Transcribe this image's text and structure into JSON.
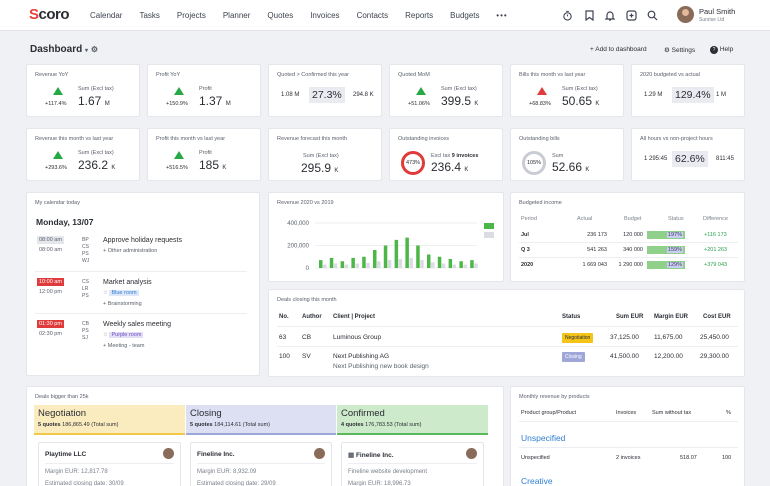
{
  "brand": {
    "logo_prefix": "S",
    "logo_rest": "coro"
  },
  "nav": [
    "Calendar",
    "Tasks",
    "Projects",
    "Planner",
    "Quotes",
    "Invoices",
    "Contacts",
    "Reports",
    "Budgets"
  ],
  "nav_more": "•••",
  "user": {
    "name": "Paul Smith",
    "company": "Sunrise Ltd"
  },
  "header": {
    "title": "Dashboard",
    "add": "+ Add to dashboard",
    "settings": "Settings",
    "help": "Help"
  },
  "kpis_row1": [
    {
      "title": "Revenue YoY",
      "type": "trend",
      "dir": "up",
      "pct": "+117.4%",
      "label": "Sum (Excl tax)",
      "value": "1.67",
      "unit": "M"
    },
    {
      "title": "Profit YoY",
      "type": "trend",
      "dir": "up",
      "pct": "+150.9%",
      "label": "Profit",
      "value": "1.37",
      "unit": "M"
    },
    {
      "title": "Quoted > Confirmed this year",
      "type": "ratio",
      "left": "1.08 M",
      "value": "27.3%",
      "right": "294.8 K"
    },
    {
      "title": "Quoted MoM",
      "type": "trend",
      "dir": "up",
      "pct": "+51.06%",
      "label": "Sum (Excl tax)",
      "value": "399.5",
      "unit": "K"
    },
    {
      "title": "Bills this month vs last year",
      "type": "trend",
      "dir": "down",
      "pct": "+68.83%",
      "label": "Sum (Excl tax)",
      "value": "50.65",
      "unit": "K"
    },
    {
      "title": "2020 budgeted vs actual",
      "type": "ratio",
      "left": "1.29 M",
      "value": "129.4%",
      "right": "1 M"
    }
  ],
  "kpis_row2": [
    {
      "title": "Revenue this month vs last year",
      "type": "trend",
      "dir": "up",
      "pct": "+293.6%",
      "label": "Sum (Excl tax)",
      "value": "236.2",
      "unit": "K"
    },
    {
      "title": "Profit this month vs last year",
      "type": "trend",
      "dir": "up",
      "pct": "+516.5%",
      "label": "Profit",
      "value": "185",
      "unit": "K"
    },
    {
      "title": "Revenue forecast this month",
      "type": "plain",
      "label": "Sum (Excl tax)",
      "value": "295.9",
      "unit": "K"
    },
    {
      "title": "Outstanding invoices",
      "type": "ring",
      "ring": "473%",
      "label": "Excl tax",
      "label_bold": "9 invoices",
      "value": "236.4",
      "unit": "K"
    },
    {
      "title": "Outstanding bills",
      "type": "ring",
      "ring": "105%",
      "label": "Sum",
      "value": "52.66",
      "unit": "K"
    },
    {
      "title": "All hours vs non-project hours",
      "type": "ratio",
      "left": "1 295:45",
      "value": "62.6%",
      "right": "811:45"
    }
  ],
  "calendar": {
    "title": "My calendar today",
    "date": "Monday, 13/07",
    "events": [
      {
        "times": [
          "08:00 am",
          "08:00 am"
        ],
        "initials": [
          "BP",
          "CS",
          "PS",
          "WJ"
        ],
        "name": "Approve holiday requests",
        "sub": "+ Other administration",
        "tag": ""
      },
      {
        "times": [
          "10:00 am",
          "12:00 pm"
        ],
        "initials": [
          "CS",
          "LR",
          "PS"
        ],
        "name": "Market analysis",
        "sub": "+ Brainstorming",
        "tag": "Blue room"
      },
      {
        "times": [
          "01:30 pm",
          "02:30 pm"
        ],
        "initials": [
          "CB",
          "PS",
          "SJ"
        ],
        "name": "Weekly sales meeting",
        "sub": "+ Meeting - team",
        "tag": "Purple room"
      }
    ]
  },
  "chart_data": {
    "type": "bar",
    "title": "Revenue 2020 vs 2019",
    "yticks": [
      "400,000",
      "200,000",
      "0"
    ],
    "ylim": [
      0,
      400000
    ],
    "series": [
      {
        "values": [
          70000,
          90000,
          60000,
          90000,
          100000,
          160000,
          200000,
          250000,
          270000,
          200000,
          120000,
          100000,
          80000,
          60000,
          70000
        ]
      },
      {
        "values": [
          30000,
          40000,
          30000,
          40000,
          45000,
          60000,
          70000,
          80000,
          90000,
          70000,
          50000,
          40000,
          30000,
          30000,
          40000
        ]
      }
    ],
    "colors": [
      "#4cb748",
      "#d9dce2"
    ]
  },
  "budget": {
    "title": "Budgeted income",
    "headers": [
      "Period",
      "Actual",
      "Budget",
      "Status",
      "Difference"
    ],
    "rows": [
      {
        "period": "Jul",
        "actual": "236 173",
        "budget": "120 000",
        "status": "197%",
        "status_level": 1,
        "diff": "+116 173"
      },
      {
        "period": "Q 3",
        "actual": "541 263",
        "budget": "340 000",
        "status": "159%",
        "status_level": 1,
        "diff": "+201 263"
      },
      {
        "period": "2020",
        "actual": "1 669 043",
        "budget": "1 290 000",
        "status": "129%",
        "status_level": 1,
        "diff": "+379 043"
      }
    ]
  },
  "deals": {
    "title": "Deals closing this month",
    "headers": [
      "No.",
      "Author",
      "Client | Project",
      "Status",
      "Sum EUR",
      "Margin EUR",
      "Cost EUR"
    ],
    "rows": [
      {
        "no": "63",
        "author": "CB",
        "client": "Luminous Group",
        "project": "",
        "status": "Negotiation",
        "status_color": "#f4c518",
        "sum": "37,125.00",
        "margin": "11,675.00",
        "cost": "25,450.00"
      },
      {
        "no": "100",
        "author": "SV",
        "client": "Next Publishing AG",
        "project": "Next Publishing new book design",
        "status": "Closing",
        "status_color": "#9fa7d8",
        "sum": "41,500.00",
        "margin": "12,200.00",
        "cost": "29,300.00"
      }
    ]
  },
  "pipeline": {
    "title": "Deals bigger than 25k",
    "columns": [
      {
        "name": "Negotiation",
        "count": "5 quotes",
        "sum": "186,865.49 (Total sum)",
        "bg": "#fbecc0",
        "border": "#f2c849",
        "card": {
          "client": "Playtime LLC",
          "line1": "Margin EUR: 12,817.78",
          "line2": "Estimated closing date: 30/09"
        }
      },
      {
        "name": "Closing",
        "count": "5 quotes",
        "sum": "184,114.61 (Total sum)",
        "bg": "#dde0f3",
        "border": "#9ea7d9",
        "card": {
          "client": "Fineline Inc.",
          "line1": "Margin EUR: 8,932.09",
          "line2": "Estimated closing date: 29/09"
        }
      },
      {
        "name": "Confirmed",
        "count": "4 quotes",
        "sum": "176,783.53 (Total sum)",
        "bg": "#cdeacb",
        "border": "#5cb85c",
        "card": {
          "client": "Fineline Inc.",
          "line1": "Fineline website development",
          "line2": "Margin EUR: 18,996.73"
        }
      }
    ]
  },
  "monthly": {
    "title": "Monthly revenue by products",
    "headers": [
      "Product group/Product",
      "Invoices",
      "Sum without tax",
      "%"
    ],
    "group1": "Unspecified",
    "row": {
      "product": "Unspecified",
      "invoices": "2 invoices",
      "sum": "518.07",
      "pct": "100"
    },
    "group2": "Creative"
  }
}
